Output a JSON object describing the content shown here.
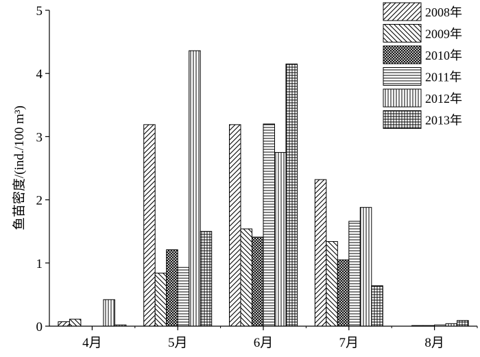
{
  "chart_data": {
    "type": "bar",
    "title": "",
    "xlabel": "",
    "ylabel": "鱼苗密度/(ind./100 m³)",
    "categories": [
      "4月",
      "5月",
      "6月",
      "7月",
      "8月"
    ],
    "ylim": [
      0,
      5
    ],
    "yticks": [
      "0",
      "1",
      "2",
      "3",
      "4",
      "5"
    ],
    "grid": false,
    "legend_position": "top-right",
    "series": [
      {
        "name": "2008年",
        "pattern": "diag-fwd",
        "values": [
          0.07,
          3.19,
          3.19,
          2.32,
          0.0
        ]
      },
      {
        "name": "2009年",
        "pattern": "diag-back",
        "values": [
          0.11,
          0.84,
          1.54,
          1.34,
          0.01
        ]
      },
      {
        "name": "2010年",
        "pattern": "cross-dense",
        "values": [
          0.0,
          1.21,
          1.41,
          1.05,
          0.01
        ]
      },
      {
        "name": "2011年",
        "pattern": "horizontal",
        "values": [
          0.0,
          0.93,
          3.2,
          1.66,
          0.02
        ]
      },
      {
        "name": "2012年",
        "pattern": "vertical",
        "values": [
          0.42,
          4.36,
          2.75,
          1.88,
          0.04
        ]
      },
      {
        "name": "2013年",
        "pattern": "grid",
        "values": [
          0.02,
          1.5,
          4.15,
          0.64,
          0.09
        ]
      }
    ]
  }
}
